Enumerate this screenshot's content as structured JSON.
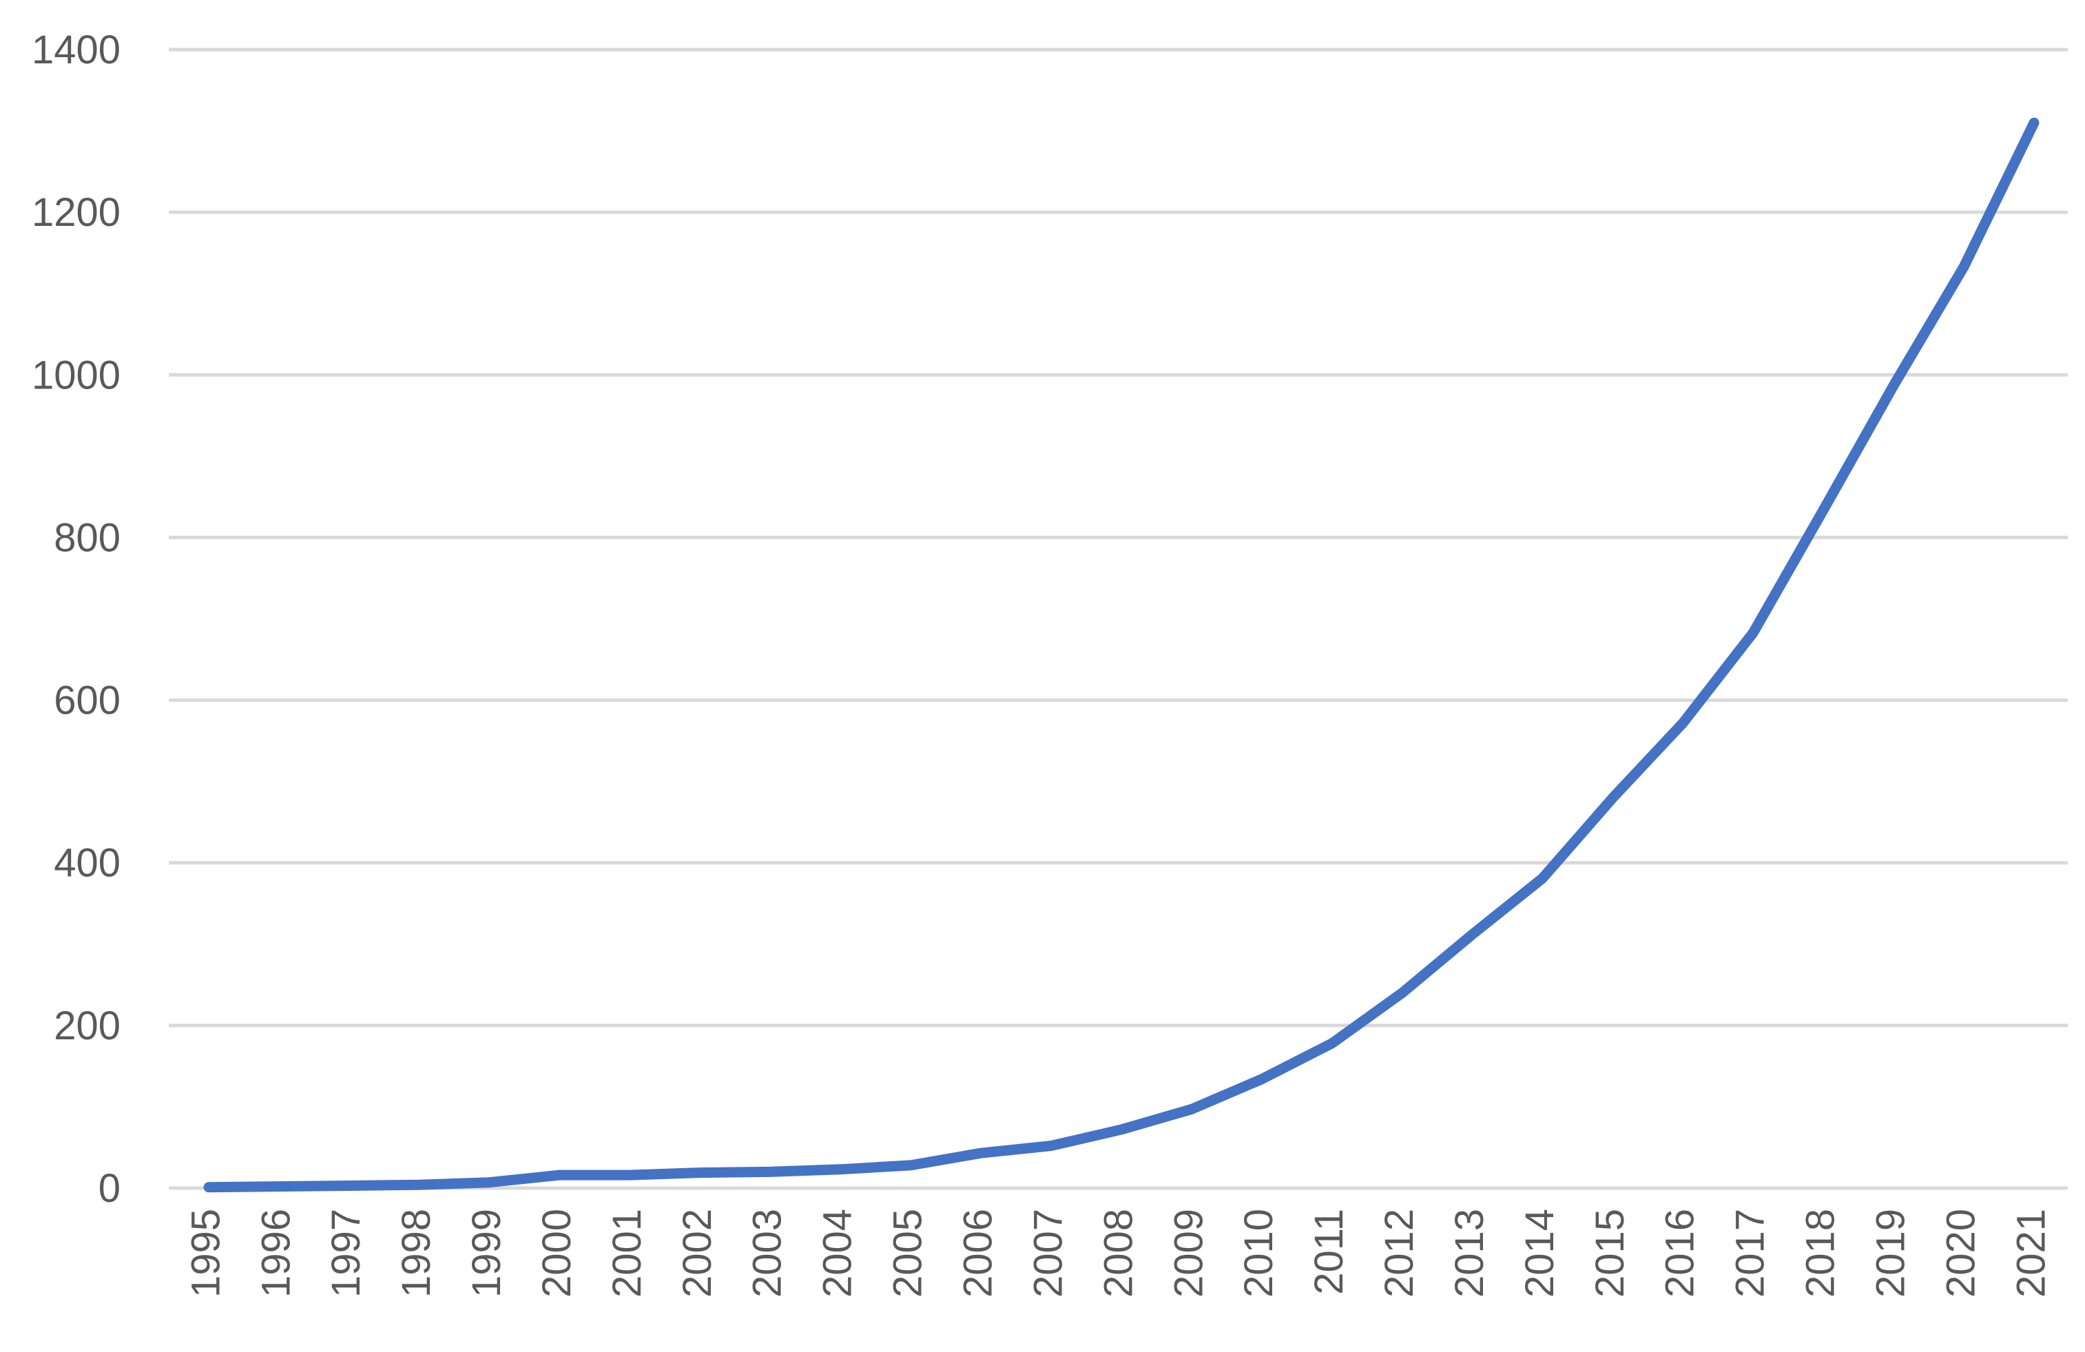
{
  "chart_data": {
    "type": "line",
    "title": "",
    "xlabel": "",
    "ylabel": "",
    "ylim": [
      0,
      1400
    ],
    "yticks": [
      0,
      200,
      400,
      600,
      800,
      1000,
      1200,
      1400
    ],
    "grid": true,
    "legend": "none",
    "categories": [
      "1995",
      "1996",
      "1997",
      "1998",
      "1999",
      "2000",
      "2001",
      "2002",
      "2003",
      "2004",
      "2005",
      "2006",
      "2007",
      "2008",
      "2009",
      "2010",
      "2011",
      "2012",
      "2013",
      "2014",
      "2015",
      "2016",
      "2017",
      "2018",
      "2019",
      "2020",
      "2021"
    ],
    "series": [
      {
        "color": "#4472c4",
        "values": [
          1,
          2,
          3,
          4,
          7,
          16,
          16,
          19,
          20,
          23,
          28,
          43,
          52,
          72,
          97,
          134,
          178,
          240,
          312,
          381,
          480,
          572,
          683,
          834,
          987,
          1133,
          1310
        ]
      }
    ]
  }
}
